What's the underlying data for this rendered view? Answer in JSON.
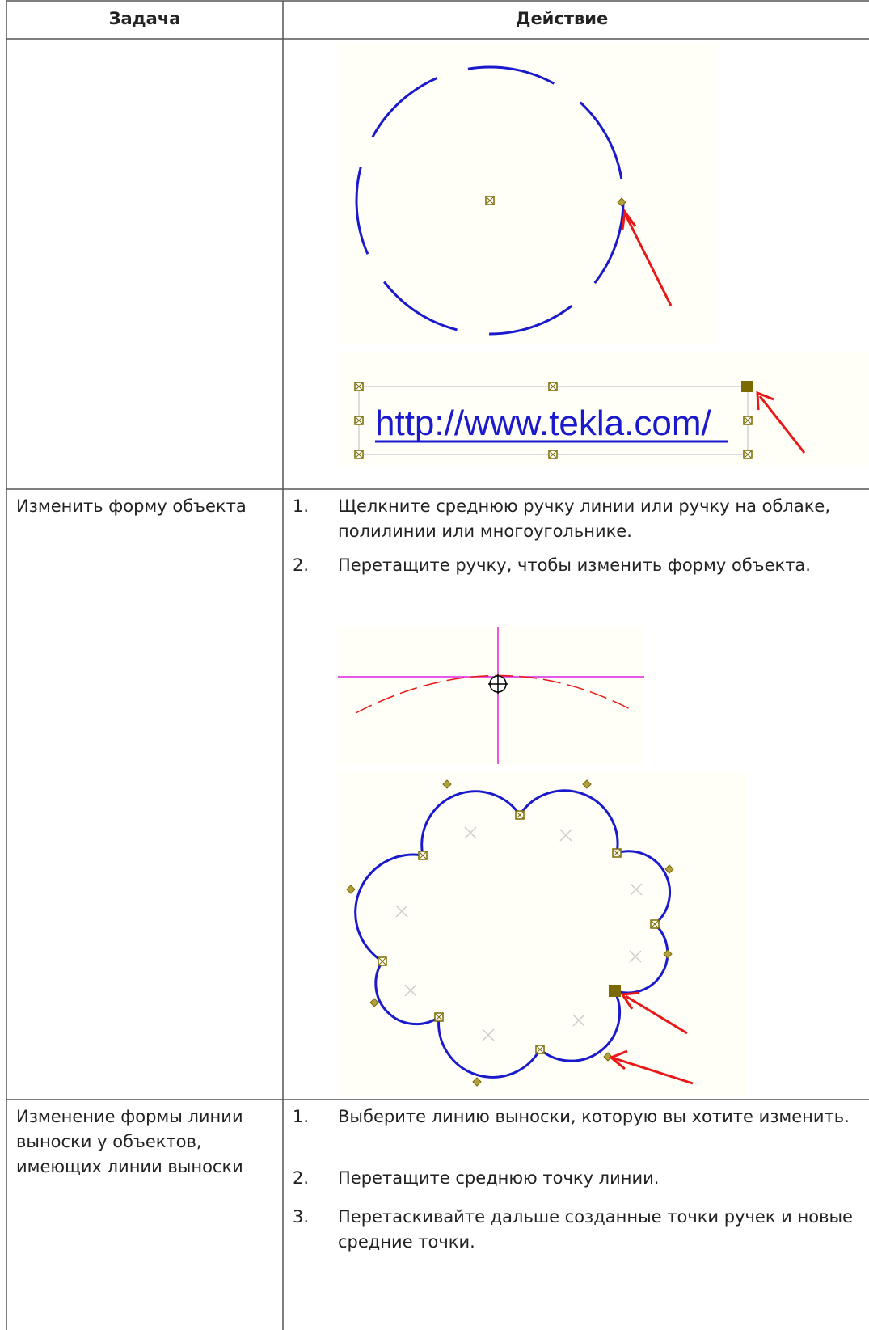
{
  "table": {
    "header": [
      "Задача",
      "Действие"
    ],
    "rows": [
      {
        "image_text": "http://www.tekla.com/"
      },
      {
        "task": "Изменить форму объекта",
        "steps": [
          {
            "number": "1.",
            "text": "Щелкните среднюю ручку линии или ручку на облаке, полилинии или многоугольнике."
          },
          {
            "number": "2.",
            "text": "Перетащите ручку, чтобы изменить форму объекта."
          }
        ]
      },
      {
        "task": "Изменение формы линии выноски у объектов, имеющих линии выноски",
        "steps": [
          {
            "number": "1.",
            "text": "Выберите линию выноски, которую вы хотите изменить."
          },
          {
            "number": "2.",
            "text": "Перетащите среднюю точку линии."
          },
          {
            "number": "3.",
            "text": "Перетаскивайте дальше созданные точки ручек и новые средние точки."
          }
        ]
      }
    ]
  }
}
